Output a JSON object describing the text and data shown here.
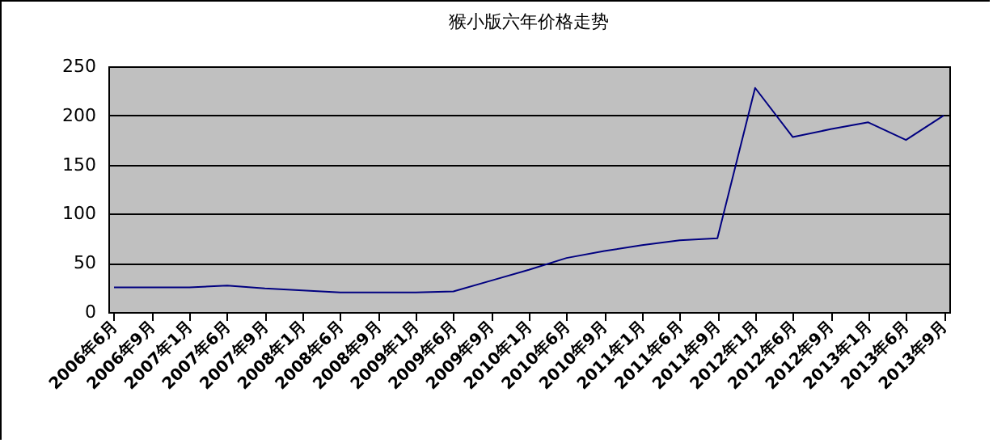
{
  "chart_data": {
    "type": "line",
    "title": "猴小版六年价格走势",
    "categories": [
      "2006年6月",
      "2006年9月",
      "2007年1月",
      "2007年6月",
      "2007年9月",
      "2008年1月",
      "2008年6月",
      "2008年9月",
      "2009年1月",
      "2009年6月",
      "2009年9月",
      "2010年1月",
      "2010年6月",
      "2010年9月",
      "2011年1月",
      "2011年6月",
      "2011年9月",
      "2012年1月",
      "2012年6月",
      "2012年9月",
      "2013年1月",
      "2013年6月",
      "2013年9月"
    ],
    "series": [
      {
        "color": "#000080",
        "values": [
          25,
          25,
          25,
          27,
          24,
          22,
          20,
          20,
          20,
          21,
          32,
          43,
          55,
          62,
          68,
          73,
          75,
          228,
          178,
          186,
          193,
          175,
          200
        ]
      }
    ],
    "ylim": [
      0,
      250
    ],
    "yticks": [
      0,
      50,
      100,
      150,
      200,
      250
    ],
    "grid": "y"
  }
}
